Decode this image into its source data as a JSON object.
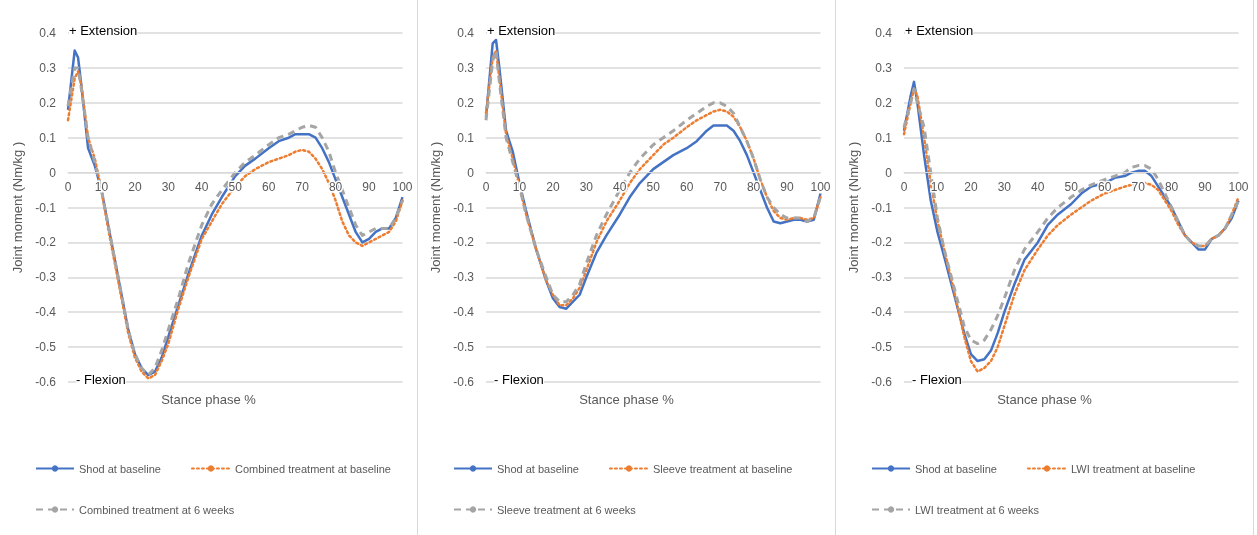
{
  "chart_data": [
    {
      "type": "line",
      "xlabel": "Stance phase %",
      "ylabel": "Joint moment (Nm/kg )",
      "annotations": [
        "+ Extension",
        "- Flexion"
      ],
      "x": [
        0,
        2,
        3,
        4,
        6,
        8,
        10,
        12,
        15,
        18,
        20,
        22,
        24,
        26,
        28,
        30,
        33,
        36,
        40,
        43,
        46,
        50,
        53,
        56,
        60,
        63,
        66,
        68,
        70,
        72,
        74,
        76,
        78,
        80,
        82,
        84,
        86,
        88,
        90,
        92,
        94,
        96,
        98,
        100
      ],
      "xlim": [
        0,
        100
      ],
      "xticks": [
        0,
        10,
        20,
        30,
        40,
        50,
        60,
        70,
        80,
        90,
        100
      ],
      "ylim": [
        -0.6,
        0.4
      ],
      "yticks": [
        -0.6,
        -0.5,
        -0.4,
        -0.3,
        -0.2,
        -0.1,
        0,
        0.1,
        0.2,
        0.3,
        0.4
      ],
      "grid": "y",
      "legend": "bottom",
      "marker": "none",
      "series": [
        {
          "name": "Shod at baseline",
          "color": "#4472c4",
          "line_style": "solid",
          "values": [
            0.18,
            0.35,
            0.33,
            0.25,
            0.07,
            0.02,
            -0.05,
            -0.15,
            -0.3,
            -0.45,
            -0.52,
            -0.56,
            -0.58,
            -0.57,
            -0.53,
            -0.47,
            -0.38,
            -0.29,
            -0.18,
            -0.12,
            -0.07,
            -0.01,
            0.02,
            0.04,
            0.07,
            0.09,
            0.1,
            0.11,
            0.11,
            0.11,
            0.1,
            0.07,
            0.03,
            -0.02,
            -0.07,
            -0.12,
            -0.17,
            -0.2,
            -0.19,
            -0.17,
            -0.16,
            -0.16,
            -0.13,
            -0.07
          ]
        },
        {
          "name": "Combined treatment at baseline",
          "color": "#ed7d31",
          "line_style": "dotted",
          "values": [
            0.15,
            0.27,
            0.29,
            0.25,
            0.1,
            0.04,
            -0.05,
            -0.16,
            -0.31,
            -0.46,
            -0.53,
            -0.57,
            -0.59,
            -0.58,
            -0.54,
            -0.49,
            -0.39,
            -0.3,
            -0.19,
            -0.14,
            -0.09,
            -0.04,
            -0.01,
            0.01,
            0.03,
            0.04,
            0.05,
            0.06,
            0.065,
            0.06,
            0.04,
            0.01,
            -0.03,
            -0.08,
            -0.14,
            -0.18,
            -0.2,
            -0.21,
            -0.2,
            -0.19,
            -0.18,
            -0.17,
            -0.14,
            -0.08
          ]
        },
        {
          "name": "Combined treatment at 6 weeks",
          "color": "#a5a5a5",
          "line_style": "dashed",
          "values": [
            0.19,
            0.3,
            0.3,
            0.24,
            0.1,
            0.03,
            -0.05,
            -0.15,
            -0.3,
            -0.45,
            -0.52,
            -0.56,
            -0.58,
            -0.56,
            -0.51,
            -0.45,
            -0.36,
            -0.26,
            -0.15,
            -0.09,
            -0.05,
            0.0,
            0.03,
            0.05,
            0.08,
            0.1,
            0.11,
            0.12,
            0.13,
            0.135,
            0.13,
            0.1,
            0.06,
            0.0,
            -0.05,
            -0.1,
            -0.15,
            -0.18,
            -0.17,
            -0.16,
            -0.16,
            -0.16,
            -0.13,
            -0.08
          ]
        }
      ]
    },
    {
      "type": "line",
      "xlabel": "Stance phase %",
      "ylabel": "Joint moment (Nm/kg )",
      "annotations": [
        "+ Extension",
        "- Flexion"
      ],
      "x": [
        0,
        2,
        3,
        4,
        6,
        8,
        10,
        12,
        15,
        18,
        20,
        22,
        24,
        26,
        28,
        30,
        33,
        36,
        40,
        43,
        46,
        50,
        53,
        56,
        60,
        63,
        66,
        68,
        70,
        72,
        74,
        76,
        78,
        80,
        82,
        84,
        86,
        88,
        90,
        92,
        94,
        96,
        98,
        100
      ],
      "xlim": [
        0,
        100
      ],
      "xticks": [
        0,
        10,
        20,
        30,
        40,
        50,
        60,
        70,
        80,
        90,
        100
      ],
      "ylim": [
        -0.6,
        0.4
      ],
      "yticks": [
        -0.6,
        -0.5,
        -0.4,
        -0.3,
        -0.2,
        -0.1,
        0,
        0.1,
        0.2,
        0.3,
        0.4
      ],
      "grid": "y",
      "legend": "bottom",
      "marker": "none",
      "series": [
        {
          "name": "Shod at baseline",
          "color": "#4472c4",
          "line_style": "solid",
          "values": [
            0.16,
            0.37,
            0.38,
            0.3,
            0.12,
            0.06,
            -0.03,
            -0.11,
            -0.22,
            -0.31,
            -0.36,
            -0.385,
            -0.39,
            -0.37,
            -0.35,
            -0.3,
            -0.23,
            -0.18,
            -0.12,
            -0.07,
            -0.03,
            0.01,
            0.03,
            0.05,
            0.07,
            0.09,
            0.12,
            0.135,
            0.135,
            0.135,
            0.12,
            0.09,
            0.05,
            0.0,
            -0.05,
            -0.1,
            -0.14,
            -0.145,
            -0.14,
            -0.135,
            -0.135,
            -0.14,
            -0.135,
            -0.06
          ]
        },
        {
          "name": "Sleeve treatment at baseline",
          "color": "#ed7d31",
          "line_style": "dotted",
          "values": [
            0.17,
            0.33,
            0.35,
            0.27,
            0.11,
            0.04,
            -0.04,
            -0.12,
            -0.22,
            -0.31,
            -0.35,
            -0.38,
            -0.38,
            -0.36,
            -0.33,
            -0.28,
            -0.2,
            -0.14,
            -0.08,
            -0.03,
            0.01,
            0.05,
            0.08,
            0.1,
            0.13,
            0.15,
            0.165,
            0.175,
            0.18,
            0.175,
            0.16,
            0.13,
            0.09,
            0.04,
            -0.02,
            -0.07,
            -0.11,
            -0.13,
            -0.135,
            -0.13,
            -0.13,
            -0.135,
            -0.13,
            -0.07
          ]
        },
        {
          "name": "Sleeve treatment at 6 weeks",
          "color": "#a5a5a5",
          "line_style": "dashed",
          "values": [
            0.15,
            0.32,
            0.35,
            0.26,
            0.1,
            0.03,
            -0.04,
            -0.12,
            -0.22,
            -0.3,
            -0.35,
            -0.37,
            -0.37,
            -0.35,
            -0.32,
            -0.26,
            -0.18,
            -0.12,
            -0.05,
            0.0,
            0.04,
            0.08,
            0.1,
            0.12,
            0.15,
            0.17,
            0.19,
            0.2,
            0.2,
            0.19,
            0.17,
            0.13,
            0.09,
            0.04,
            -0.02,
            -0.07,
            -0.1,
            -0.12,
            -0.13,
            -0.13,
            -0.13,
            -0.14,
            -0.13,
            -0.07
          ]
        }
      ]
    },
    {
      "type": "line",
      "xlabel": "Stance phase %",
      "ylabel": "Joint moment (Nm/kg )",
      "annotations": [
        "+ Extension",
        "- Flexion"
      ],
      "x": [
        0,
        2,
        3,
        4,
        6,
        8,
        10,
        12,
        15,
        18,
        20,
        22,
        24,
        26,
        28,
        30,
        33,
        36,
        40,
        43,
        46,
        50,
        53,
        56,
        60,
        63,
        66,
        68,
        70,
        72,
        74,
        76,
        78,
        80,
        82,
        84,
        86,
        88,
        90,
        92,
        94,
        96,
        98,
        100
      ],
      "xlim": [
        0,
        100
      ],
      "xticks": [
        0,
        10,
        20,
        30,
        40,
        50,
        60,
        70,
        80,
        90,
        100
      ],
      "ylim": [
        -0.6,
        0.4
      ],
      "yticks": [
        -0.6,
        -0.5,
        -0.4,
        -0.3,
        -0.2,
        -0.1,
        0,
        0.1,
        0.2,
        0.3,
        0.4
      ],
      "grid": "y",
      "legend": "bottom",
      "marker": "none",
      "series": [
        {
          "name": "Shod at baseline",
          "color": "#4472c4",
          "line_style": "solid",
          "values": [
            0.12,
            0.22,
            0.26,
            0.2,
            0.05,
            -0.08,
            -0.17,
            -0.24,
            -0.35,
            -0.46,
            -0.52,
            -0.54,
            -0.535,
            -0.51,
            -0.46,
            -0.4,
            -0.32,
            -0.25,
            -0.2,
            -0.15,
            -0.12,
            -0.09,
            -0.06,
            -0.04,
            -0.03,
            -0.015,
            -0.01,
            0.0,
            0.005,
            0.005,
            -0.01,
            -0.04,
            -0.07,
            -0.1,
            -0.14,
            -0.18,
            -0.2,
            -0.22,
            -0.22,
            -0.19,
            -0.18,
            -0.16,
            -0.13,
            -0.08
          ]
        },
        {
          "name": "LWI treatment at baseline",
          "color": "#ed7d31",
          "line_style": "dotted",
          "values": [
            0.11,
            0.2,
            0.24,
            0.22,
            0.1,
            -0.03,
            -0.14,
            -0.22,
            -0.34,
            -0.47,
            -0.54,
            -0.57,
            -0.56,
            -0.54,
            -0.5,
            -0.44,
            -0.35,
            -0.28,
            -0.22,
            -0.18,
            -0.15,
            -0.12,
            -0.1,
            -0.08,
            -0.06,
            -0.05,
            -0.04,
            -0.035,
            -0.03,
            -0.03,
            -0.035,
            -0.05,
            -0.08,
            -0.11,
            -0.15,
            -0.18,
            -0.2,
            -0.21,
            -0.21,
            -0.19,
            -0.18,
            -0.16,
            -0.12,
            -0.07
          ]
        },
        {
          "name": "LWI treatment at 6 weeks",
          "color": "#a5a5a5",
          "line_style": "dashed",
          "values": [
            0.13,
            0.2,
            0.24,
            0.2,
            0.13,
            0.0,
            -0.13,
            -0.22,
            -0.33,
            -0.44,
            -0.48,
            -0.49,
            -0.48,
            -0.45,
            -0.41,
            -0.36,
            -0.28,
            -0.22,
            -0.17,
            -0.13,
            -0.1,
            -0.07,
            -0.05,
            -0.035,
            -0.02,
            -0.01,
            0.0,
            0.015,
            0.02,
            0.02,
            0.01,
            -0.02,
            -0.06,
            -0.1,
            -0.14,
            -0.18,
            -0.2,
            -0.21,
            -0.21,
            -0.19,
            -0.18,
            -0.16,
            -0.12,
            -0.08
          ]
        }
      ]
    }
  ]
}
